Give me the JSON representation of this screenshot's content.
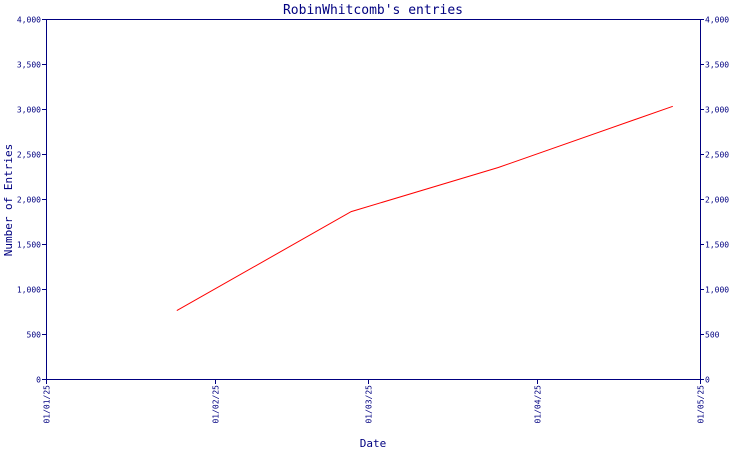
{
  "chart_data": {
    "type": "line",
    "title": "RobinWhitcomb's entries",
    "xlabel": "Date",
    "ylabel": "Number of Entries",
    "x_tick_labels": [
      "01/01/25",
      "01/02/25",
      "01/03/25",
      "01/04/25",
      "01/05/25"
    ],
    "x_tick_dates": [
      "2025-01-01",
      "2025-02-01",
      "2025-03-01",
      "2025-04-01",
      "2025-05-01"
    ],
    "y_tick_labels": [
      "0",
      "500",
      "1,000",
      "1,500",
      "2,000",
      "2,500",
      "3,000",
      "3,500",
      "4,000"
    ],
    "y_tick_values": [
      0,
      500,
      1000,
      1500,
      2000,
      2500,
      3000,
      3500,
      4000
    ],
    "ylim": [
      0,
      4000
    ],
    "xlim": [
      "2025-01-01",
      "2025-05-01"
    ],
    "grid": false,
    "series": [
      {
        "color": "#ff0000",
        "x": [
          "2025-01-25",
          "2025-02-26",
          "2025-03-25",
          "2025-04-26"
        ],
        "y": [
          760,
          1860,
          2350,
          3030
        ]
      }
    ]
  }
}
